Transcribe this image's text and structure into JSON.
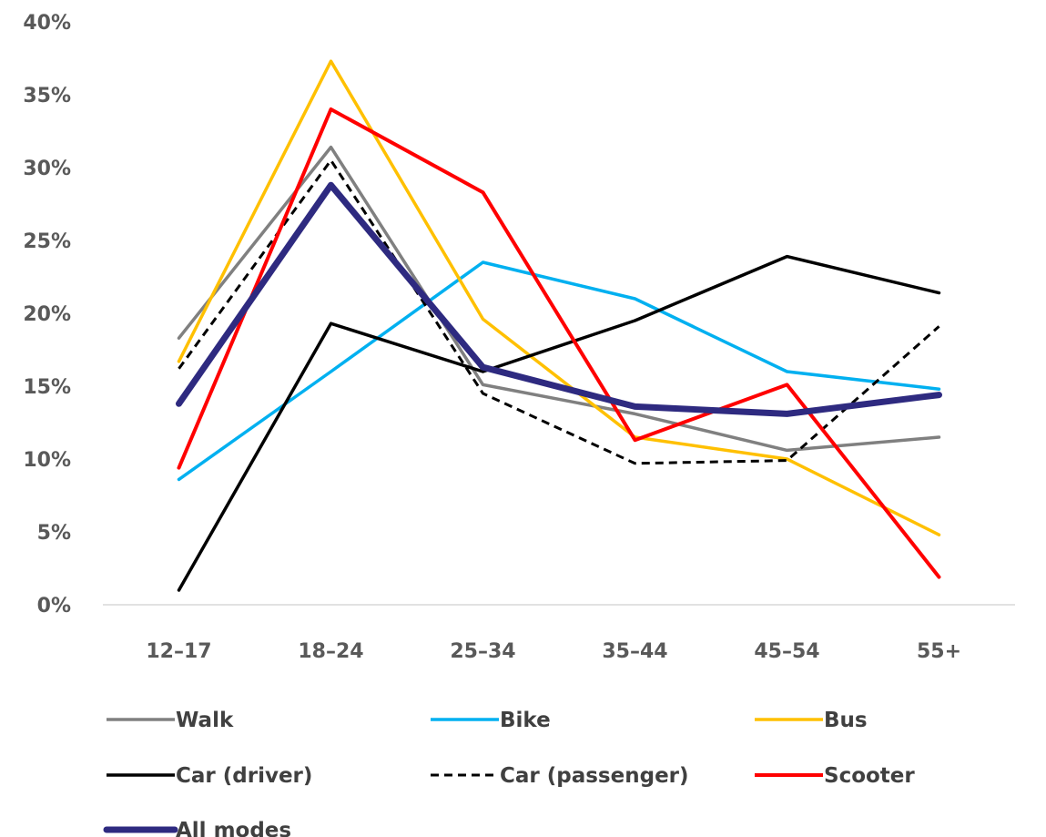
{
  "chart_data": {
    "type": "line",
    "title": "",
    "xlabel": "",
    "ylabel": "",
    "categories": [
      "12–17",
      "18–24",
      "25–34",
      "35–44",
      "45–54",
      "55+"
    ],
    "y_ticks": [
      "0%",
      "5%",
      "10%",
      "15%",
      "20%",
      "25%",
      "30%",
      "35%",
      "40%"
    ],
    "ylim": [
      0,
      40
    ],
    "grid": false,
    "legend_position": "bottom",
    "series": [
      {
        "name": "Walk",
        "color": "#808080",
        "style": "solid",
        "values": [
          18.3,
          31.4,
          15.1,
          13.1,
          10.6,
          11.5
        ]
      },
      {
        "name": "Bike",
        "color": "#00B0F0",
        "style": "solid",
        "values": [
          8.6,
          16.0,
          23.5,
          21.0,
          16.0,
          14.8
        ]
      },
      {
        "name": "Bus",
        "color": "#FFC000",
        "style": "solid",
        "values": [
          16.7,
          37.3,
          19.6,
          11.5,
          10.0,
          4.8
        ]
      },
      {
        "name": "Car (driver)",
        "color": "#000000",
        "style": "solid",
        "values": [
          1.0,
          19.3,
          16.0,
          19.5,
          23.9,
          21.4
        ]
      },
      {
        "name": "Car (passenger)",
        "color": "#000000",
        "style": "dashed",
        "values": [
          16.2,
          30.5,
          14.5,
          9.7,
          9.9,
          19.1
        ]
      },
      {
        "name": "Scooter",
        "color": "#FF0000",
        "style": "solid",
        "values": [
          9.4,
          34.0,
          28.3,
          11.3,
          15.1,
          1.9
        ]
      },
      {
        "name": "All modes",
        "color": "#2E2A80",
        "style": "thick",
        "values": [
          13.8,
          28.8,
          16.3,
          13.6,
          13.1,
          14.4
        ]
      }
    ]
  }
}
